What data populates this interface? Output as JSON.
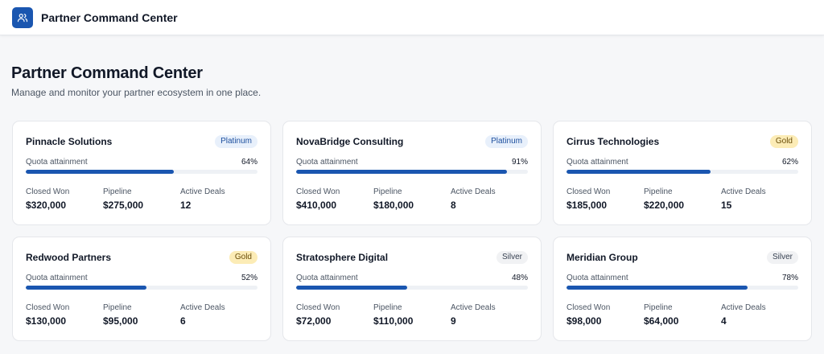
{
  "app": {
    "title": "Partner Command Center",
    "logo_icon": "users-icon"
  },
  "page": {
    "title": "Partner Command Center",
    "subtitle": "Manage and monitor your partner ecosystem in one place."
  },
  "colors": {
    "accent": "#1a56b0",
    "platinum_bg": "#e8f0fb",
    "gold_bg": "#fcecb6",
    "silver_bg": "#f1f2f4"
  },
  "labels": {
    "quota": "Quota attainment",
    "closed_won": "Closed Won",
    "pipeline": "Pipeline",
    "active_deals": "Active Deals"
  },
  "partners": [
    {
      "name": "Pinnacle Solutions",
      "tier": "Platinum",
      "quota_pct": "64%",
      "quota": 0.64,
      "closed_won": "$320,000",
      "pipeline": "$275,000",
      "active_deals": "12"
    },
    {
      "name": "NovaBridge Consulting",
      "tier": "Platinum",
      "quota_pct": "91%",
      "quota": 0.91,
      "closed_won": "$410,000",
      "pipeline": "$180,000",
      "active_deals": "8"
    },
    {
      "name": "Cirrus Technologies",
      "tier": "Gold",
      "quota_pct": "62%",
      "quota": 0.62,
      "closed_won": "$185,000",
      "pipeline": "$220,000",
      "active_deals": "15"
    },
    {
      "name": "Redwood Partners",
      "tier": "Gold",
      "quota_pct": "52%",
      "quota": 0.52,
      "closed_won": "$130,000",
      "pipeline": "$95,000",
      "active_deals": "6"
    },
    {
      "name": "Stratosphere Digital",
      "tier": "Silver",
      "quota_pct": "48%",
      "quota": 0.48,
      "closed_won": "$72,000",
      "pipeline": "$110,000",
      "active_deals": "9"
    },
    {
      "name": "Meridian Group",
      "tier": "Silver",
      "quota_pct": "78%",
      "quota": 0.78,
      "closed_won": "$98,000",
      "pipeline": "$64,000",
      "active_deals": "4"
    }
  ]
}
